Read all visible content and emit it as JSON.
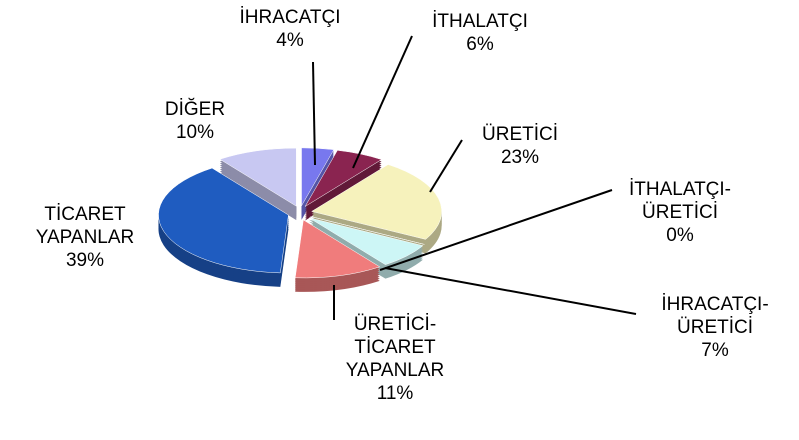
{
  "chart_data": {
    "type": "pie",
    "categories": [
      "İHRACATÇI",
      "İTHALATÇI",
      "ÜRETİCİ",
      "İTHALATÇI-ÜRETİCİ",
      "İHRACATÇI-ÜRETİCİ",
      "ÜRETİCİ-TİCARET YAPANLAR",
      "TİCARET YAPANLAR",
      "DİĞER"
    ],
    "values": [
      4,
      6,
      23,
      0,
      7,
      11,
      39,
      10
    ],
    "value_labels": [
      "4%",
      "6%",
      "23%",
      "0%",
      "7%",
      "11%",
      "39%",
      "10%"
    ],
    "colors": [
      "#7878ee",
      "#8a2450",
      "#f6f2bc",
      "#1a2a80",
      "#cdf6f6",
      "#f07c7c",
      "#1f5cc0",
      "#c8c8f2"
    ]
  }
}
